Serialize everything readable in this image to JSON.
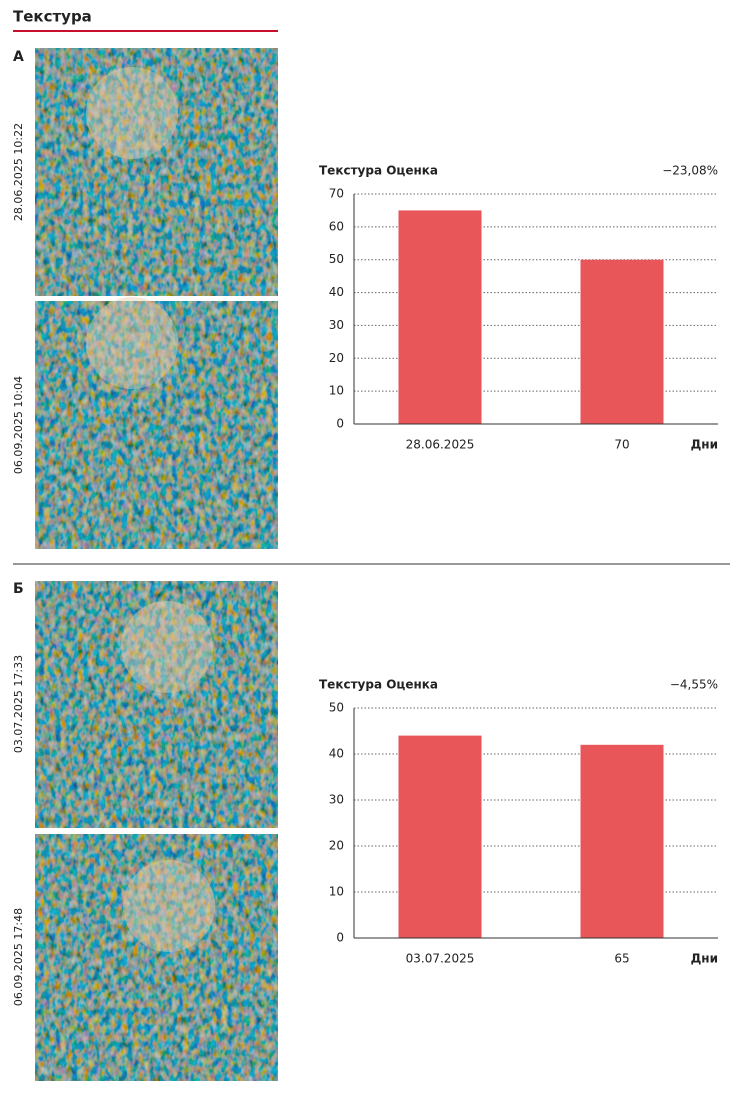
{
  "header": {
    "title": "Текстура"
  },
  "panels": [
    {
      "label": "А",
      "photos": [
        "28.06.2025 10:22",
        "06.09.2025 10:04"
      ]
    },
    {
      "label": "Б",
      "photos": [
        "03.07.2025 17:33",
        "06.09.2025 17:48"
      ]
    }
  ],
  "chart_data": [
    {
      "type": "bar",
      "title": "Текстура Оценка",
      "annotation": "−23,08%",
      "x_label": "Дни",
      "categories": [
        "28.06.2025",
        "70"
      ],
      "values": [
        65,
        50
      ],
      "color": "#e8565a",
      "ylim": [
        0,
        70
      ],
      "yticks": [
        0,
        10,
        20,
        30,
        40,
        50,
        60,
        70
      ],
      "grid": true
    },
    {
      "type": "bar",
      "title": "Текстура Оценка",
      "annotation": "−4,55%",
      "x_label": "Дни",
      "categories": [
        "03.07.2025",
        "65"
      ],
      "values": [
        44,
        42
      ],
      "color": "#e8565a",
      "ylim": [
        0,
        50
      ],
      "yticks": [
        0,
        10,
        20,
        30,
        40,
        50
      ],
      "grid": true
    }
  ]
}
